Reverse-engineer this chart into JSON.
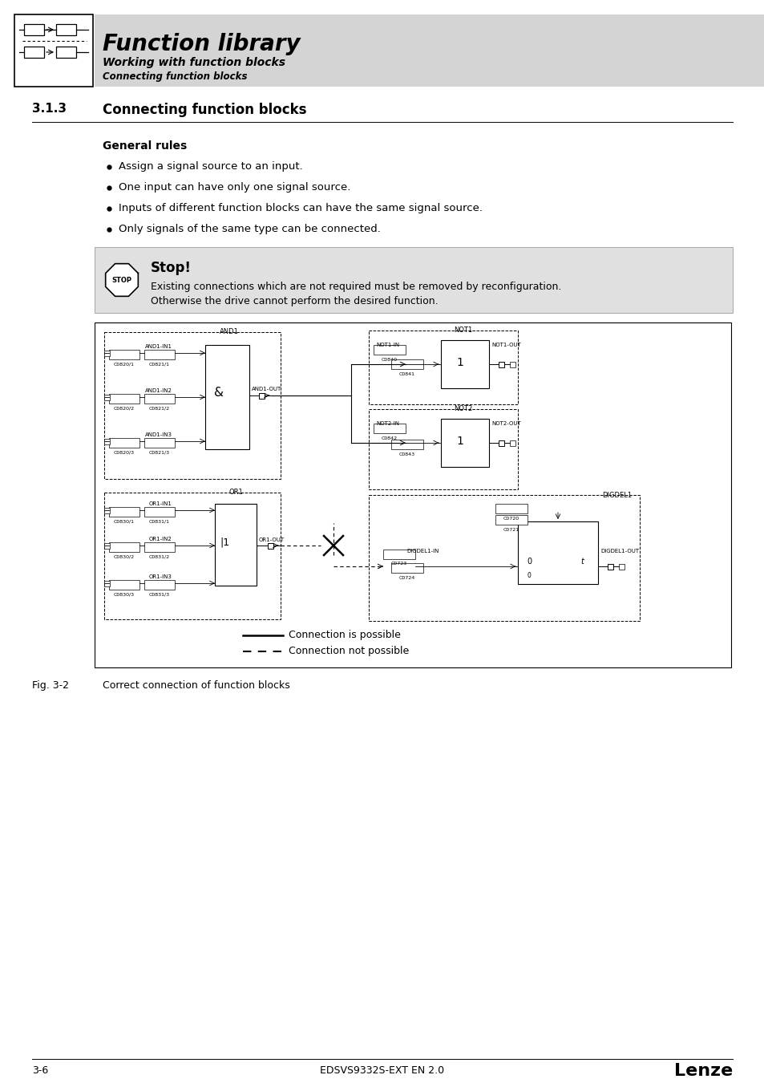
{
  "bg_color": "#ffffff",
  "header_bg": "#d4d4d4",
  "header_title": "Function library",
  "header_sub1": "Working with function blocks",
  "header_sub2": "Connecting function blocks",
  "section_num": "3.1.3",
  "section_title": "Connecting function blocks",
  "general_rules_title": "General rules",
  "bullets": [
    "Assign a signal source to an input.",
    "One input can have only one signal source.",
    "Inputs of different function blocks can have the same signal source.",
    "Only signals of the same type can be connected."
  ],
  "stop_title": "Stop!",
  "stop_line1": "Existing connections which are not required must be removed by reconfiguration.",
  "stop_line2": "Otherwise the drive cannot perform the desired function.",
  "fig_caption": "Fig. 3-2",
  "fig_text": "Correct connection of function blocks",
  "legend_solid": "Connection is possible",
  "legend_dashed": "Connection not possible",
  "footer_left": "3-6",
  "footer_center": "EDSVS9332S-EXT EN 2.0",
  "footer_right": "Lenze"
}
